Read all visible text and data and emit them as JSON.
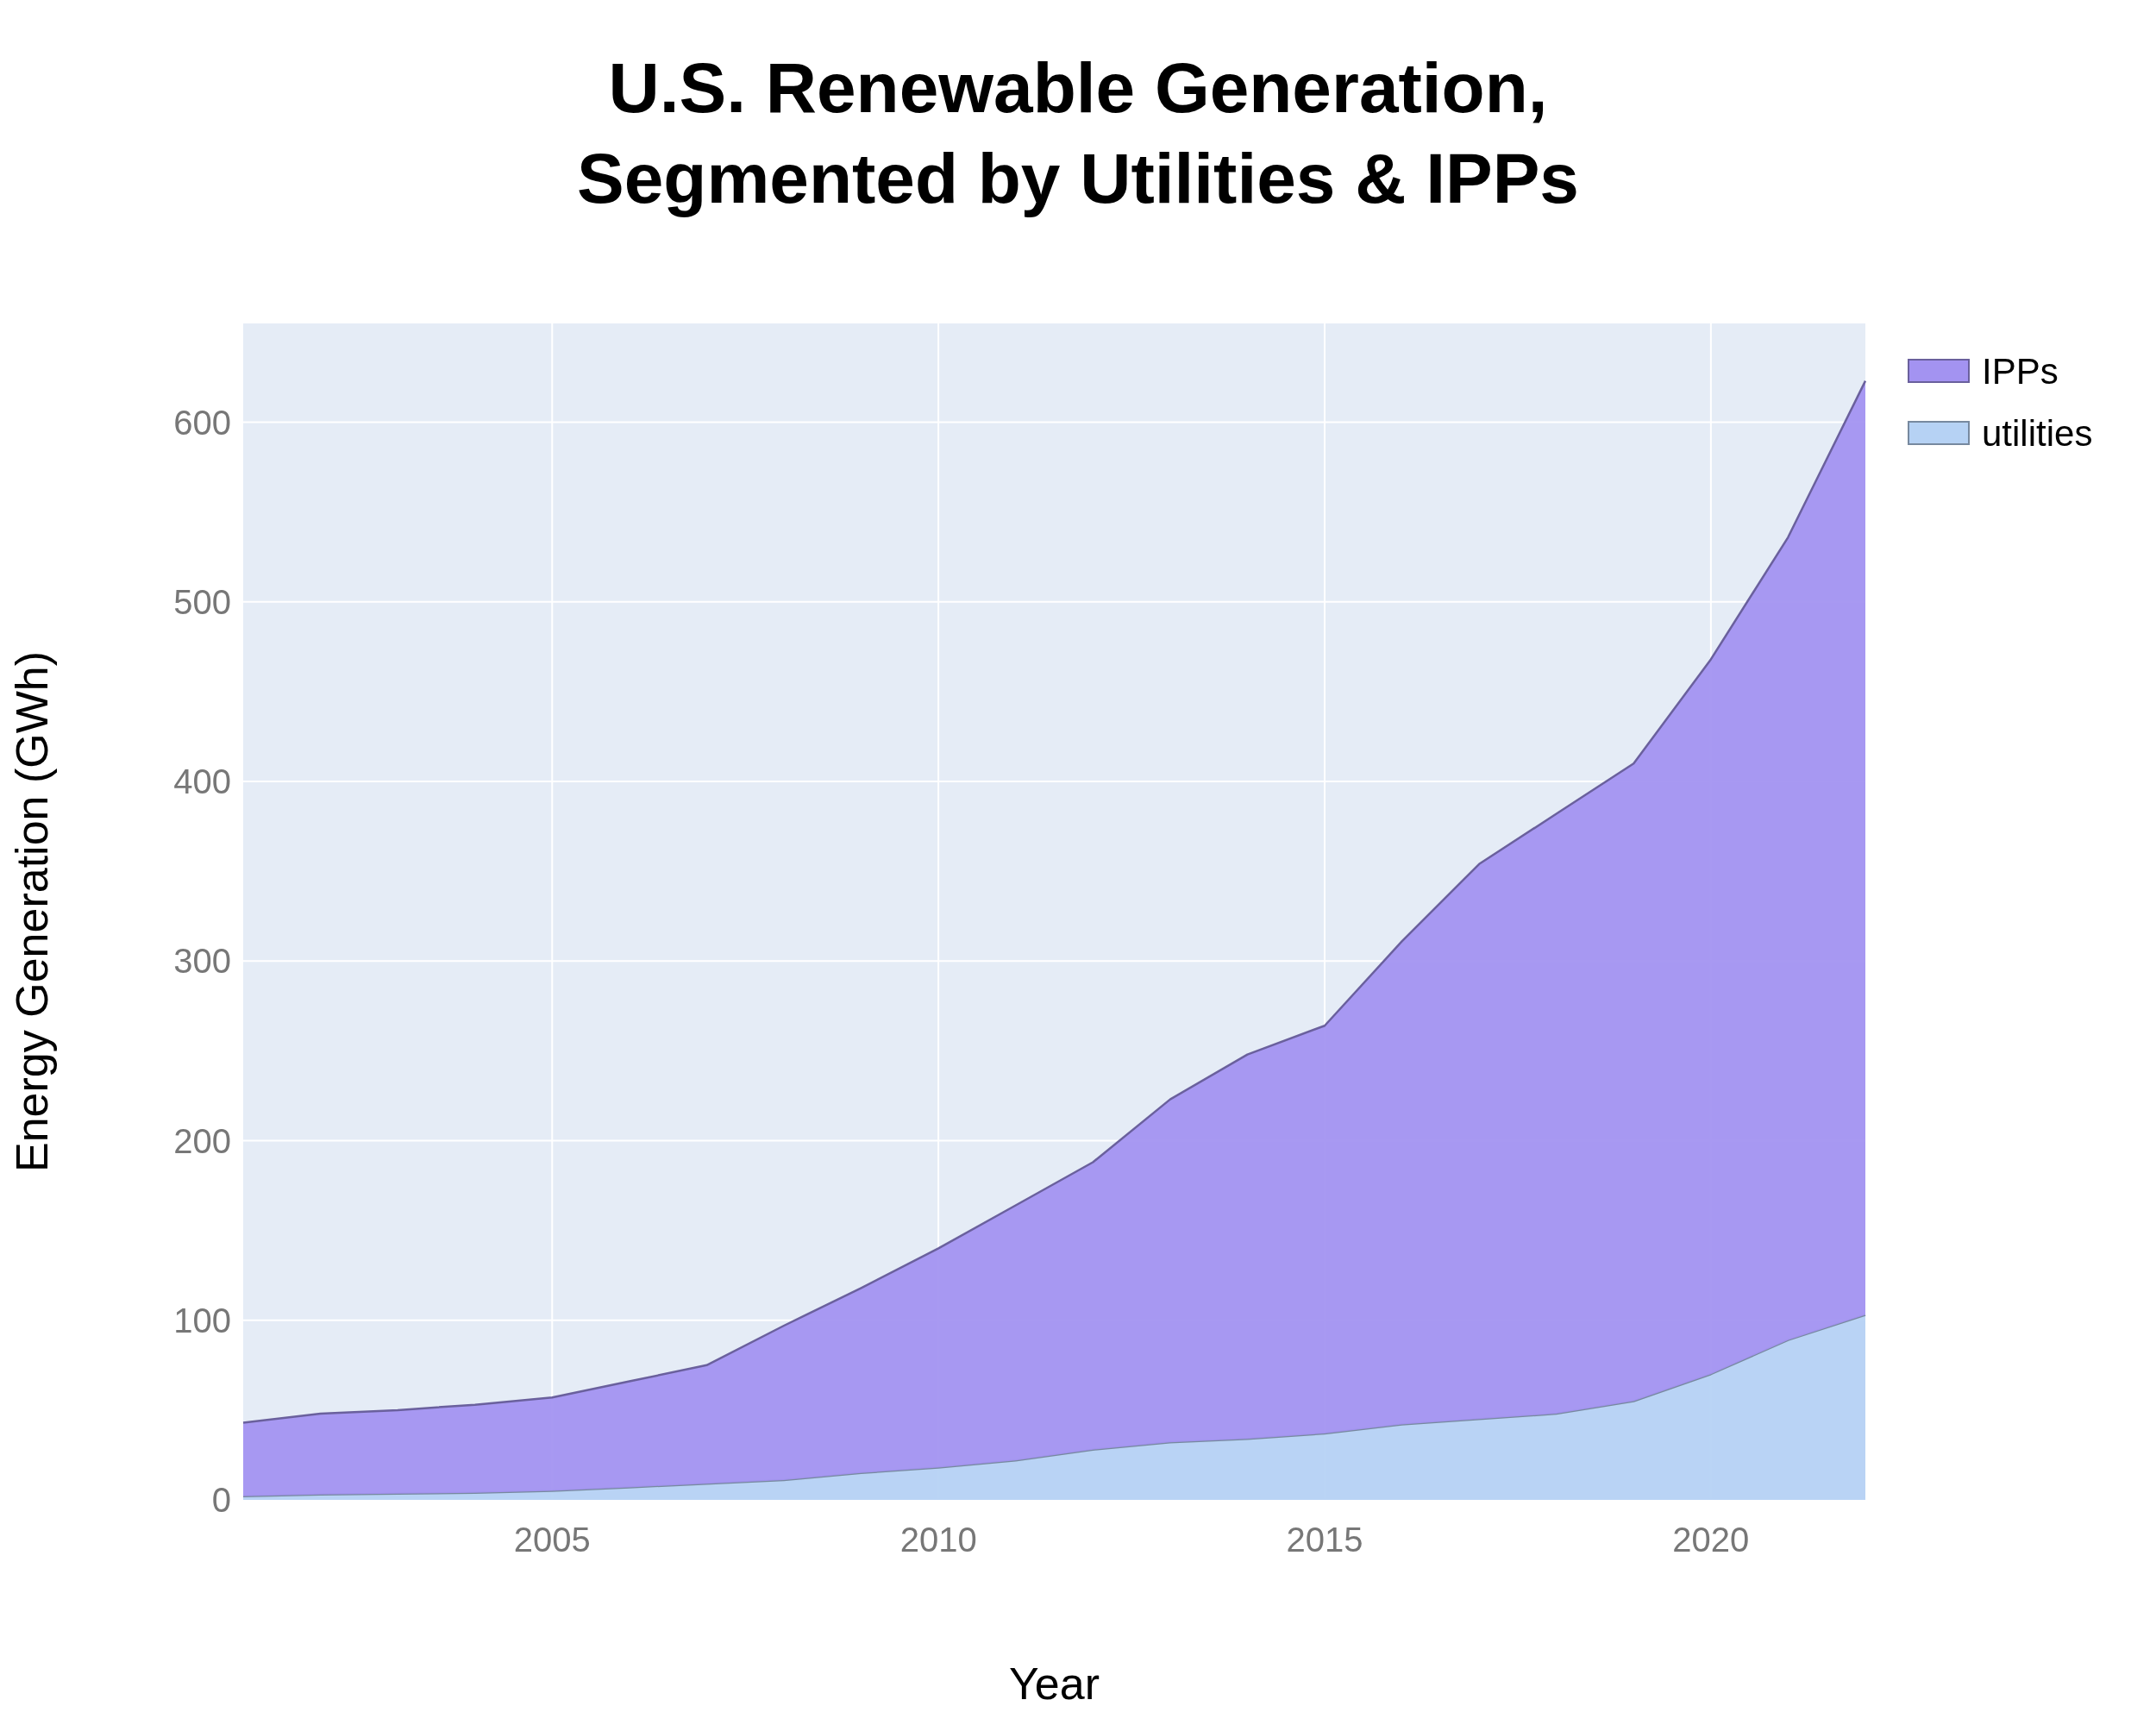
{
  "chart_data": {
    "type": "area",
    "title": "U.S. Renewable Generation,\nSegmented by Utilities & IPPs",
    "xlabel": "Year",
    "ylabel": "Energy Generation (GWh)",
    "x": [
      2001,
      2002,
      2003,
      2004,
      2005,
      2006,
      2007,
      2008,
      2009,
      2010,
      2011,
      2012,
      2013,
      2014,
      2015,
      2016,
      2017,
      2018,
      2019,
      2020,
      2021,
      2022
    ],
    "stacked": true,
    "series": [
      {
        "name": "utilities",
        "color": "#b6d2f4",
        "values": [
          2,
          3,
          3.5,
          4,
          5,
          7,
          9,
          11,
          15,
          18,
          22,
          28,
          32,
          34,
          37,
          42,
          45,
          48,
          55,
          70,
          89,
          103
        ]
      },
      {
        "name": "IPPs",
        "color": "#a393f1",
        "values": [
          41,
          45,
          46.5,
          49,
          52,
          59,
          66,
          86,
          103,
          122,
          142,
          160,
          191,
          214,
          227,
          269,
          309,
          334,
          355,
          398,
          447,
          520
        ]
      }
    ],
    "xlim": [
      2001,
      2022
    ],
    "xticks": [
      2005,
      2010,
      2015,
      2020
    ],
    "ylim": [
      0,
      655
    ],
    "yticks": [
      0,
      100,
      200,
      300,
      400,
      500,
      600
    ],
    "grid": true,
    "legend": "top right"
  }
}
